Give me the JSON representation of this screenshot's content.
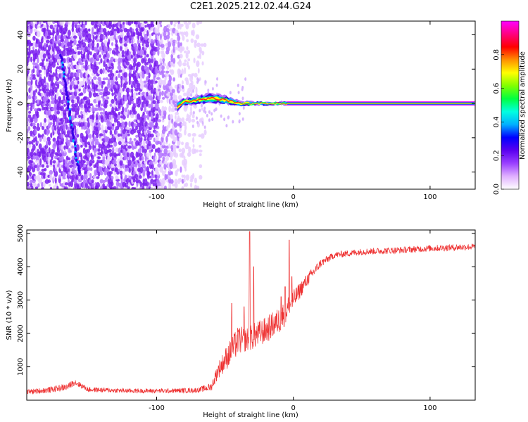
{
  "title": "C2E1.2025.212.02.44.G24",
  "chart_data": [
    {
      "type": "heatmap",
      "xlabel": "Height of straight line (km)",
      "ylabel": "Frequency (Hz)",
      "xlim": [
        -195,
        133
      ],
      "ylim": [
        -50,
        48
      ],
      "xticks": [
        -100,
        0,
        100
      ],
      "yticks": [
        -40,
        -20,
        0,
        20,
        40
      ],
      "colorbar": {
        "label": "Normalized spectral amplitude",
        "range": [
          0,
          1
        ],
        "ticks": [
          "0.0",
          "0.2",
          "0.4",
          "0.6",
          "0.8"
        ],
        "colors": [
          "#ffffff",
          "#e0b0ff",
          "#9a40ff",
          "#5a00f0",
          "#0000ff",
          "#00b0ff",
          "#00ffe0",
          "#00ff40",
          "#80ff00",
          "#ffff00",
          "#ff9000",
          "#ff0000",
          "#ff0080",
          "#ff00ff"
        ]
      },
      "features": {
        "noise_region_x": [
          -195,
          -65
        ],
        "dense_noise_x": [
          -195,
          -100
        ],
        "tilted_line": [
          [
            -170,
            28
          ],
          [
            -157,
            -40
          ]
        ],
        "signal_band": [
          [
            -85,
            -2
          ],
          [
            -80,
            1
          ],
          [
            -70,
            2
          ],
          [
            -60,
            3
          ],
          [
            -50,
            2
          ],
          [
            -40,
            0
          ],
          [
            -30,
            0
          ],
          [
            -15,
            0
          ],
          [
            0,
            0
          ],
          [
            133,
            0
          ]
        ],
        "signal_band_width_hz": [
          6,
          4,
          5,
          6,
          5,
          3,
          2,
          2,
          2,
          2
        ]
      }
    },
    {
      "type": "line",
      "xlabel": "Height of straight line (km)",
      "ylabel": "SNR (10 * v/v)",
      "xlim": [
        -195,
        133
      ],
      "ylim": [
        0,
        5100
      ],
      "xticks": [
        -100,
        0,
        100
      ],
      "yticks": [
        1000,
        2000,
        3000,
        4000,
        5000
      ],
      "color": "#ee3030",
      "series": [
        {
          "envelope": [
            [
              -195,
              250,
              150
            ],
            [
              -180,
              300,
              180
            ],
            [
              -165,
              400,
              200
            ],
            [
              -160,
              550,
              200
            ],
            [
              -150,
              320,
              150
            ],
            [
              -120,
              280,
              140
            ],
            [
              -90,
              280,
              140
            ],
            [
              -70,
              300,
              150
            ],
            [
              -60,
              400,
              250
            ],
            [
              -55,
              900,
              500
            ],
            [
              -50,
              1200,
              700
            ],
            [
              -45,
              1500,
              800
            ],
            [
              -40,
              1800,
              900
            ],
            [
              -35,
              1800,
              700
            ],
            [
              -30,
              1900,
              800
            ],
            [
              -20,
              2100,
              800
            ],
            [
              -10,
              2400,
              800
            ],
            [
              -5,
              2700,
              800
            ],
            [
              0,
              3000,
              600
            ],
            [
              10,
              3600,
              400
            ],
            [
              20,
              4100,
              250
            ],
            [
              30,
              4350,
              200
            ],
            [
              50,
              4450,
              200
            ],
            [
              80,
              4500,
              200
            ],
            [
              100,
              4550,
              200
            ],
            [
              133,
              4600,
              200
            ]
          ],
          "spikes": [
            [
              -32,
              5050
            ],
            [
              -29,
              4000
            ],
            [
              -3,
              4800
            ],
            [
              -6,
              3400
            ],
            [
              -45,
              2900
            ],
            [
              -36,
              2800
            ],
            [
              -9,
              3100
            ],
            [
              -1,
              3700
            ]
          ]
        }
      ]
    }
  ]
}
